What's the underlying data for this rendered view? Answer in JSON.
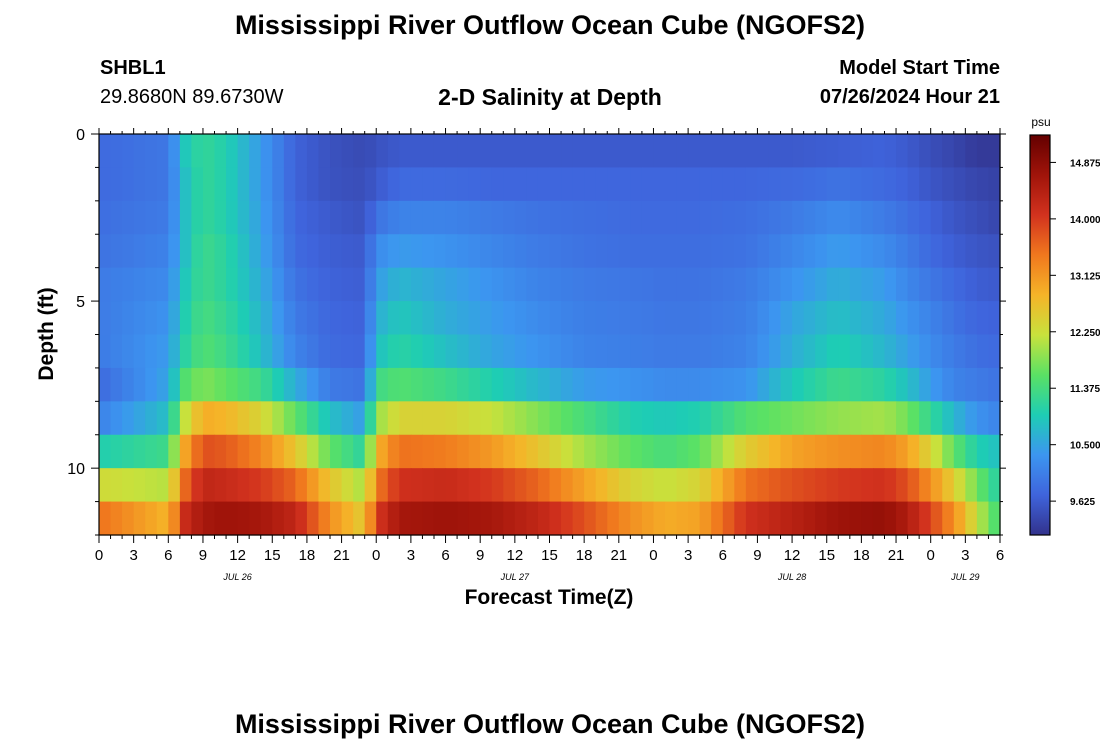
{
  "header": {
    "title": "Mississippi River Outflow Ocean Cube (NGOFS2)",
    "station_id": "SHBL1",
    "station_coords": "29.8680N  89.6730W",
    "subtitle": "2-D Salinity at Depth",
    "model_start_label": "Model Start Time",
    "model_start_value": "07/26/2024 Hour 21"
  },
  "footer": {
    "title": "Mississippi River Outflow Ocean Cube (NGOFS2)"
  },
  "chart_data": {
    "type": "heatmap",
    "xlabel": "Forecast Time(Z)",
    "ylabel": "Depth (ft)",
    "x_range_hours": [
      0,
      78
    ],
    "x_tick_labels": [
      "0",
      "3",
      "6",
      "9",
      "12",
      "15",
      "18",
      "21",
      "0",
      "3",
      "6",
      "9",
      "12",
      "15",
      "18",
      "21",
      "0",
      "3",
      "6",
      "9",
      "12",
      "15",
      "18",
      "21",
      "0",
      "3",
      "6"
    ],
    "date_labels": [
      {
        "label": "JUL 26",
        "hour": 12
      },
      {
        "label": "JUL 27",
        "hour": 36
      },
      {
        "label": "JUL 28",
        "hour": 60
      },
      {
        "label": "JUL 29",
        "hour": 75
      }
    ],
    "y_range_ft": [
      0,
      12
    ],
    "y_tick_labels": [
      "0",
      "5",
      "10"
    ],
    "depth_levels_ft": [
      0.5,
      1.5,
      2.5,
      3.5,
      4.5,
      5.5,
      6.5,
      7.5,
      8.5,
      9.5,
      10.5,
      11.5
    ],
    "colorbar": {
      "unit": "psu",
      "min": 9.1,
      "max": 15.3,
      "tick_labels": [
        "14.875",
        "14.000",
        "13.125",
        "12.250",
        "11.375",
        "10.500",
        "9.625"
      ],
      "colors": [
        "#32328c",
        "#3f64dc",
        "#3c96f0",
        "#1ecdb4",
        "#5ae164",
        "#c8e13c",
        "#f5b428",
        "#f0781e",
        "#d2321e",
        "#a0140a",
        "#640000"
      ]
    },
    "time_hours": [
      0,
      6,
      7.5,
      9,
      11,
      14,
      17,
      20,
      23,
      24,
      26,
      30,
      34,
      38,
      42,
      46,
      49,
      52,
      56,
      60,
      64,
      68,
      70,
      72,
      74,
      76,
      78
    ],
    "salinity_psu": [
      [
        9.8,
        9.95,
        10.9,
        11.2,
        11.0,
        10.4,
        9.7,
        9.5,
        9.4,
        9.5,
        9.6,
        9.6,
        9.6,
        9.6,
        9.6,
        9.6,
        9.6,
        9.6,
        9.6,
        9.6,
        9.65,
        9.7,
        9.6,
        9.45,
        9.35,
        9.2,
        9.2
      ],
      [
        9.8,
        9.95,
        10.8,
        11.2,
        11.0,
        10.4,
        9.7,
        9.5,
        9.45,
        9.6,
        9.8,
        9.8,
        9.75,
        9.75,
        9.75,
        9.75,
        9.75,
        9.75,
        9.75,
        9.8,
        9.9,
        9.8,
        9.7,
        9.55,
        9.45,
        9.35,
        9.3
      ],
      [
        9.85,
        10.0,
        10.8,
        11.2,
        11.0,
        10.45,
        9.75,
        9.6,
        9.5,
        9.9,
        10.1,
        10.1,
        10.0,
        9.9,
        9.85,
        9.8,
        9.8,
        9.8,
        9.85,
        10.0,
        10.2,
        10.0,
        9.85,
        9.7,
        9.55,
        9.45,
        9.35
      ],
      [
        9.9,
        10.1,
        10.8,
        11.3,
        11.1,
        10.5,
        9.8,
        9.65,
        9.6,
        10.2,
        10.4,
        10.3,
        10.15,
        10.0,
        9.9,
        9.85,
        9.85,
        9.85,
        9.9,
        10.15,
        10.4,
        10.2,
        10.0,
        9.8,
        9.65,
        9.55,
        9.5
      ],
      [
        10.0,
        10.2,
        10.9,
        11.3,
        11.1,
        10.6,
        9.9,
        9.7,
        9.65,
        10.4,
        10.7,
        10.5,
        10.3,
        10.1,
        10.0,
        9.95,
        9.9,
        9.9,
        10.0,
        10.3,
        10.6,
        10.4,
        10.15,
        9.95,
        9.8,
        9.65,
        9.6
      ],
      [
        10.0,
        10.3,
        11.0,
        11.4,
        11.2,
        10.7,
        10.0,
        9.75,
        9.7,
        10.6,
        10.9,
        10.6,
        10.4,
        10.2,
        10.05,
        10.0,
        9.95,
        9.95,
        10.05,
        10.5,
        10.8,
        10.55,
        10.3,
        10.1,
        9.9,
        9.75,
        9.7
      ],
      [
        10.0,
        10.4,
        11.1,
        11.5,
        11.3,
        10.8,
        10.1,
        9.8,
        9.75,
        10.8,
        11.1,
        10.8,
        10.5,
        10.3,
        10.1,
        10.05,
        10.0,
        10.0,
        10.1,
        10.6,
        11.0,
        10.7,
        10.45,
        10.2,
        10.0,
        9.85,
        9.8
      ],
      [
        9.8,
        10.5,
        11.5,
        11.8,
        11.6,
        11.3,
        10.6,
        10.0,
        9.9,
        11.3,
        11.5,
        11.3,
        11.0,
        10.7,
        10.4,
        10.3,
        10.2,
        10.2,
        10.3,
        10.9,
        11.3,
        11.1,
        10.8,
        10.4,
        10.1,
        10.0,
        9.9
      ],
      [
        10.1,
        10.8,
        12.2,
        12.9,
        12.8,
        12.4,
        11.6,
        10.8,
        10.4,
        11.9,
        12.4,
        12.4,
        12.2,
        11.8,
        11.4,
        11.0,
        10.9,
        11.0,
        11.5,
        11.7,
        11.9,
        12.0,
        11.7,
        11.2,
        10.7,
        10.3,
        10.1
      ],
      [
        11.0,
        11.3,
        13.0,
        13.8,
        13.7,
        13.3,
        12.6,
        11.6,
        11.1,
        12.8,
        13.5,
        13.4,
        13.1,
        12.6,
        12.0,
        11.6,
        11.4,
        11.6,
        12.5,
        13.0,
        13.2,
        13.3,
        13.0,
        12.4,
        11.6,
        11.0,
        10.8
      ],
      [
        12.3,
        12.1,
        13.6,
        14.3,
        14.2,
        14.0,
        13.6,
        12.6,
        12.0,
        13.4,
        14.1,
        14.2,
        14.0,
        13.6,
        13.0,
        12.4,
        12.2,
        12.4,
        13.5,
        13.8,
        14.0,
        14.1,
        13.8,
        13.2,
        12.5,
        11.7,
        11.0
      ],
      [
        13.5,
        12.8,
        14.2,
        14.6,
        14.7,
        14.6,
        14.3,
        13.2,
        12.5,
        14.0,
        14.6,
        14.7,
        14.6,
        14.3,
        13.8,
        13.2,
        12.9,
        13.0,
        14.1,
        14.4,
        14.7,
        14.8,
        14.5,
        13.9,
        13.2,
        12.2,
        11.3
      ]
    ]
  }
}
